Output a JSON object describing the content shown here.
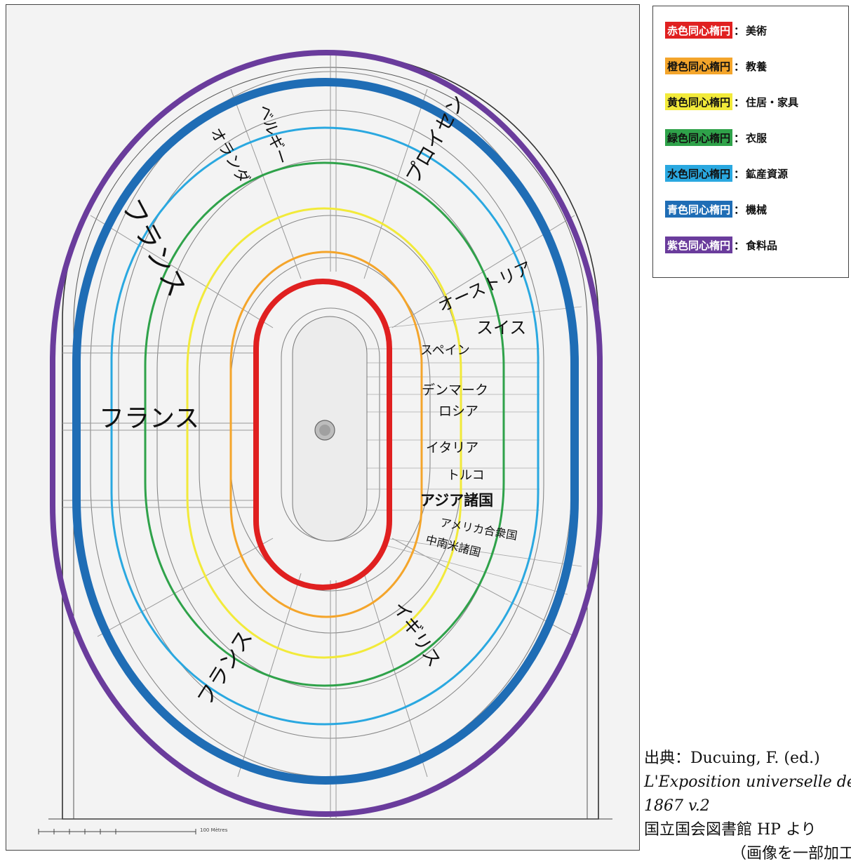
{
  "legend": {
    "items": [
      {
        "label": "赤色同心楕円",
        "category": "美術",
        "color": "#e02020",
        "text": "#ffffff"
      },
      {
        "label": "橙色同心楕円",
        "category": "教養",
        "color": "#f4a52b",
        "text": "#111111"
      },
      {
        "label": "黄色同心楕円",
        "category": "住居・家具",
        "color": "#f2ea3a",
        "text": "#111111"
      },
      {
        "label": "緑色同心楕円",
        "category": "衣服",
        "color": "#2fa24a",
        "text": "#111111"
      },
      {
        "label": "水色同心楕円",
        "category": "鉱産資源",
        "color": "#2aa8e0",
        "text": "#111111"
      },
      {
        "label": "青色同心楕円",
        "category": "機械",
        "color": "#1f6db5",
        "text": "#ffffff"
      },
      {
        "label": "紫色同心楕円",
        "category": "食料品",
        "color": "#6a3c9c",
        "text": "#ffffff"
      }
    ],
    "separator": "："
  },
  "map": {
    "countries": {
      "france_west": "フランス",
      "france_nw": "フランス",
      "france_sw": "フランス",
      "netherlands": "オランダ",
      "belgium": "ベルギー",
      "prussia": "プロイセン",
      "austria": "オーストリア",
      "switzerland": "スイス",
      "spain": "スペイン",
      "denmark": "デンマーク",
      "russia": "ロシア",
      "italy": "イタリア",
      "turkey": "トルコ",
      "asia": "アジア諸国",
      "usa": "アメリカ合衆国",
      "latin_america": "中南米諸国",
      "britain": "イギリス"
    },
    "scale_label": "100 Mètres"
  },
  "source": {
    "line1": "出典：Ducuing, F. (ed.)",
    "line2": "L'Exposition universelle de",
    "line3": "1867 v.2",
    "line4": "国立国会図書館 HP より",
    "line5": "（画像を一部加工）"
  }
}
